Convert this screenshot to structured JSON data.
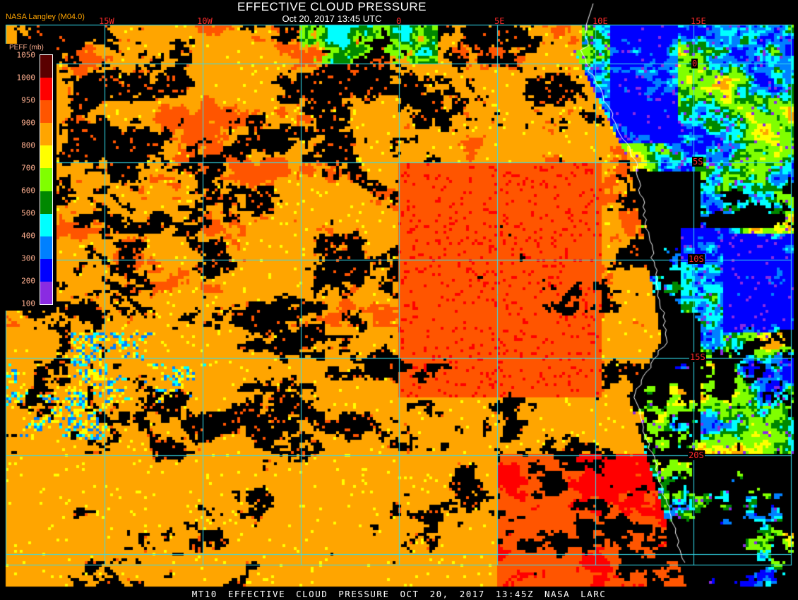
{
  "header": {
    "title": "EFFECTIVE CLOUD PRESSURE",
    "subtitle": "Oct 20, 2017 13:45 UTC",
    "agency": "NASA Langley (M04.0)"
  },
  "longitude_labels": [
    "15W",
    "10W",
    "0",
    "5E",
    "10E",
    "15E"
  ],
  "latitude_labels": [
    "0",
    "5S",
    "10S",
    "15S",
    "20S"
  ],
  "legend": {
    "title": "PEFF (mb)",
    "ticks": [
      "1050",
      "1000",
      "950",
      "900",
      "800",
      "700",
      "600",
      "500",
      "400",
      "300",
      "200",
      "100"
    ],
    "colors": [
      "#8a2be2",
      "#0000ff",
      "#0080ff",
      "#00ffff",
      "#008800",
      "#80ff00",
      "#ffff00",
      "#ffa500",
      "#ff5500",
      "#ff0000",
      "#5a0000"
    ]
  },
  "map_colors": {
    "grid": "#33ddee",
    "coastline": "#ffffff",
    "background": "#000000"
  },
  "footer": "MT10 EFFECTIVE CLOUD PRESSURE OCT 20, 2017 13:45Z NASA LARC"
}
